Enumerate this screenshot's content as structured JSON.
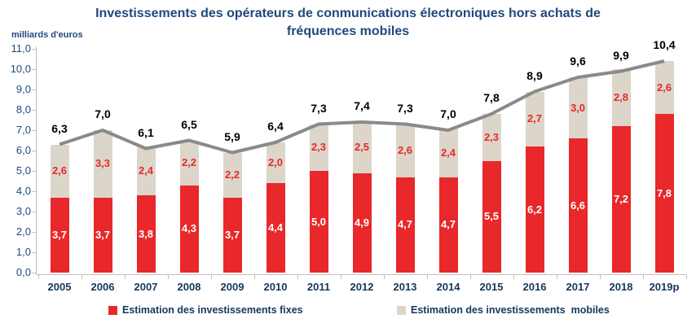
{
  "title": {
    "line1": "Investissements des opérateurs de conmunications électroniques hors achats de",
    "line2": "fréquences mobiles"
  },
  "y_axis_title": "milliards d'euros",
  "colors": {
    "title_navy": "#1F497D",
    "year_navy": "#17375D",
    "axis_line_grey": "#BFBFBF",
    "fixed_red": "#E8282B",
    "mobile_beige": "#DCD6CA",
    "trend_grey": "#8A8A8A",
    "total_label_black": "#000000",
    "fixed_label_white": "#FFFFFF",
    "mobile_label_red": "#E8282B"
  },
  "chart_data": {
    "type": "bar",
    "stacked": true,
    "grid": false,
    "legend_position": "bottom",
    "title": "Investissements des opérateurs de conmunications électroniques hors achats de fréquences mobiles",
    "xlabel": "",
    "ylabel": "milliards d'euros",
    "ylim": [
      0,
      11
    ],
    "ytick_step": 1,
    "ytick_labels": [
      "0,0",
      "1,0",
      "2,0",
      "3,0",
      "4,0",
      "5,0",
      "6,0",
      "7,0",
      "8,0",
      "9,0",
      "10,0",
      "11,0"
    ],
    "categories": [
      "2005",
      "2006",
      "2007",
      "2008",
      "2009",
      "2010",
      "2011",
      "2012",
      "2013",
      "2014",
      "2015",
      "2016",
      "2017",
      "2018",
      "2019p"
    ],
    "series": [
      {
        "name": "Estimation des investissements fixes",
        "color": "#E8282B",
        "label_color": "#FFFFFF",
        "values": [
          3.7,
          3.7,
          3.8,
          4.3,
          3.7,
          4.4,
          5.0,
          4.9,
          4.7,
          4.7,
          5.5,
          6.2,
          6.6,
          7.2,
          7.8
        ],
        "labels": [
          "3,7",
          "3,7",
          "3,8",
          "4,3",
          "3,7",
          "4,4",
          "5,0",
          "4,9",
          "4,7",
          "4,7",
          "5,5",
          "6,2",
          "6,6",
          "7,2",
          "7,8"
        ]
      },
      {
        "name": "Estimation des investissements  mobiles",
        "color": "#DCD6CA",
        "label_color": "#E8282B",
        "values": [
          2.6,
          3.3,
          2.4,
          2.2,
          2.2,
          2.0,
          2.3,
          2.5,
          2.6,
          2.4,
          2.3,
          2.7,
          3.0,
          2.8,
          2.6
        ],
        "labels": [
          "2,6",
          "3,3",
          "2,4",
          "2,2",
          "2,2",
          "2,0",
          "2,3",
          "2,5",
          "2,6",
          "2,4",
          "2,3",
          "2,7",
          "3,0",
          "2,8",
          "2,6"
        ]
      }
    ],
    "total_line": {
      "name": "Total",
      "color": "#8A8A8A",
      "label_color": "#000000",
      "values": [
        6.3,
        7.0,
        6.1,
        6.5,
        5.9,
        6.4,
        7.3,
        7.4,
        7.3,
        7.0,
        7.8,
        8.9,
        9.6,
        9.9,
        10.4
      ],
      "labels": [
        "6,3",
        "7,0",
        "6,1",
        "6,5",
        "5,9",
        "6,4",
        "7,3",
        "7,4",
        "7,3",
        "7,0",
        "7,8",
        "8,9",
        "9,6",
        "9,9",
        "10,4"
      ]
    }
  }
}
